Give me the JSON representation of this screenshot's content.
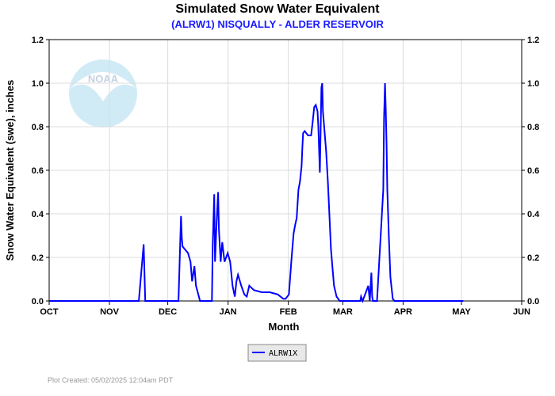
{
  "chart_data": {
    "type": "line",
    "title": "Simulated Snow Water Equivalent",
    "subtitle": "(ALRW1) NISQUALLY - ALDER RESERVOIR",
    "xlabel": "Month",
    "ylabel": "Snow Water Equivalent (swe),  inches",
    "x_units": "days since Oct 1",
    "xlim": [
      0,
      243
    ],
    "ylim": [
      0,
      1.2
    ],
    "grid": true,
    "x_ticks": [
      {
        "label": "OCT",
        "day": 0
      },
      {
        "label": "NOV",
        "day": 31
      },
      {
        "label": "DEC",
        "day": 61
      },
      {
        "label": "JAN",
        "day": 92
      },
      {
        "label": "FEB",
        "day": 123
      },
      {
        "label": "MAR",
        "day": 151
      },
      {
        "label": "APR",
        "day": 182
      },
      {
        "label": "MAY",
        "day": 212
      },
      {
        "label": "JUN",
        "day": 243
      }
    ],
    "y_ticks": [
      "0.0",
      "0.2",
      "0.4",
      "0.6",
      "0.8",
      "1.0",
      "1.2"
    ],
    "legend_position": "bottom-center",
    "series": [
      {
        "name": "ALRW1X",
        "color": "#0000ff",
        "x": [
          0,
          46.1,
          48.6,
          49.4,
          66.5,
          67.8,
          68.2,
          68.6,
          71.4,
          72.7,
          73.5,
          74.7,
          75.5,
          77.6,
          83.7,
          84.1,
          84.9,
          85.3,
          86.1,
          86.9,
          87.3,
          88.2,
          89.0,
          90.2,
          91.8,
          93.1,
          94.3,
          95.5,
          96.3,
          97.1,
          98.8,
          100.4,
          101.6,
          102.9,
          105.3,
          109.4,
          113.5,
          117.6,
          120.4,
          121.6,
          123.3,
          124.5,
          125.7,
          126.5,
          127.3,
          128.2,
          129.0,
          129.8,
          130.2,
          130.6,
          131.4,
          133.1,
          134.7,
          135.5,
          136.3,
          137.1,
          138.0,
          138.4,
          139.2,
          139.6,
          140.0,
          140.4,
          140.8,
          141.6,
          142.4,
          143.3,
          144.1,
          144.9,
          145.7,
          146.5,
          147.8,
          149.4,
          160.0,
          160.4,
          161.2,
          162.9,
          164.1,
          164.9,
          165.7,
          166.1,
          166.5,
          168.6,
          171.8,
          172.2,
          172.7,
          173.1,
          173.5,
          173.9,
          174.7,
          175.5,
          176.7,
          177.6,
          213
        ],
        "y": [
          0,
          0,
          0.26,
          0,
          0,
          0.39,
          0.29,
          0.25,
          0.22,
          0.18,
          0.09,
          0.16,
          0.07,
          0,
          0,
          0.26,
          0.49,
          0.18,
          0.36,
          0.5,
          0.33,
          0.18,
          0.27,
          0.18,
          0.22,
          0.18,
          0.07,
          0.02,
          0.09,
          0.12,
          0.07,
          0.03,
          0.02,
          0.07,
          0.05,
          0.04,
          0.04,
          0.03,
          0.01,
          0.01,
          0.03,
          0.18,
          0.31,
          0.35,
          0.38,
          0.51,
          0.55,
          0.62,
          0.7,
          0.77,
          0.78,
          0.76,
          0.76,
          0.82,
          0.89,
          0.9,
          0.87,
          0.8,
          0.59,
          0.78,
          0.98,
          1.0,
          0.87,
          0.78,
          0.69,
          0.55,
          0.4,
          0.24,
          0.15,
          0.07,
          0.02,
          0,
          0,
          0.02,
          0,
          0.04,
          0.07,
          0,
          0.13,
          0.02,
          0,
          0,
          0.51,
          0.84,
          1.0,
          0.87,
          0.73,
          0.51,
          0.29,
          0.11,
          0.01,
          0,
          0
        ]
      }
    ]
  },
  "footer": "Plot Created: 05/02/2025 12:04am PDT",
  "logo_text": "NOAA"
}
